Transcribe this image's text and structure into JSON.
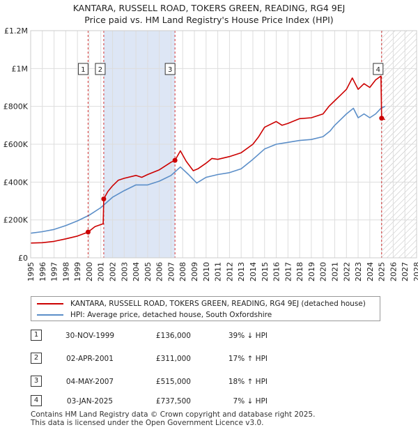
{
  "header": {
    "title": "KANTARA, RUSSELL ROAD, TOKERS GREEN, READING, RG4 9EJ",
    "subtitle": "Price paid vs. HM Land Registry's House Price Index (HPI)"
  },
  "colors": {
    "property": "#cc0000",
    "hpi": "#5b8ec8",
    "shade": "#dde6f5",
    "grid": "#dddddd"
  },
  "chart_data": {
    "type": "line",
    "title": "Price paid vs. HM Land Registry's House Price Index (HPI)",
    "xlim": [
      1995,
      2028
    ],
    "ylim": [
      0,
      1200000
    ],
    "y_ticks": [
      0,
      200000,
      400000,
      600000,
      800000,
      1000000,
      1200000
    ],
    "y_tick_labels": [
      "£0",
      "£200K",
      "£400K",
      "£600K",
      "£800K",
      "£1M",
      "£1.2M"
    ],
    "x_ticks": [
      1995,
      1996,
      1997,
      1998,
      1999,
      2000,
      2001,
      2002,
      2003,
      2004,
      2005,
      2006,
      2007,
      2008,
      2009,
      2010,
      2011,
      2012,
      2013,
      2014,
      2015,
      2016,
      2017,
      2018,
      2019,
      2020,
      2021,
      2022,
      2023,
      2024,
      2025,
      2026,
      2027,
      2028
    ],
    "x_tick_labels": [
      "1995",
      "1996",
      "1997",
      "1998",
      "1999",
      "2000",
      "2001",
      "2002",
      "2003",
      "2004",
      "2005",
      "2006",
      "2007",
      "2008",
      "2009",
      "2010",
      "2011",
      "2012",
      "2013",
      "2014",
      "2015",
      "2016",
      "2017",
      "2018",
      "2019",
      "2020",
      "2021",
      "2022",
      "2023",
      "2024",
      "2025",
      "2026",
      "2027",
      "2028"
    ],
    "shaded_period": [
      2001.25,
      2007.34
    ],
    "future_hatch_from": 2025.0,
    "series": [
      {
        "name": "KANTARA, RUSSELL ROAD, TOKERS GREEN, READING, RG4 9EJ (detached house)",
        "color": "#cc0000",
        "x": [
          1995,
          1996,
          1997,
          1998,
          1999,
          1999.91,
          2000.5,
          2001.2,
          2001.25,
          2001.6,
          2002,
          2002.5,
          2003,
          2004,
          2004.5,
          2005,
          2006,
          2007,
          2007.34,
          2007.8,
          2008.3,
          2008.9,
          2009.3,
          2010,
          2010.5,
          2011,
          2012,
          2013,
          2014,
          2014.5,
          2015,
          2016,
          2016.5,
          2017,
          2018,
          2019,
          2020,
          2020.5,
          2021,
          2021.5,
          2022,
          2022.5,
          2023,
          2023.5,
          2024,
          2024.5,
          2024.95,
          2025.01,
          2025.3
        ],
        "values": [
          78000,
          80000,
          87000,
          100000,
          115000,
          136000,
          165000,
          180000,
          311000,
          350000,
          380000,
          410000,
          420000,
          435000,
          425000,
          440000,
          465000,
          505000,
          515000,
          565000,
          510000,
          460000,
          470000,
          500000,
          525000,
          520000,
          535000,
          555000,
          600000,
          640000,
          690000,
          720000,
          700000,
          710000,
          735000,
          740000,
          760000,
          800000,
          830000,
          860000,
          890000,
          950000,
          890000,
          920000,
          900000,
          940000,
          960000,
          737500,
          730000
        ]
      },
      {
        "name": "HPI: Average price, detached house, South Oxfordshire",
        "color": "#5b8ec8",
        "x": [
          1995,
          1996,
          1997,
          1998,
          1999,
          2000,
          2001,
          2002,
          2003,
          2004,
          2005,
          2006,
          2007,
          2007.8,
          2008.5,
          2009.2,
          2010,
          2011,
          2012,
          2013,
          2014,
          2015,
          2016,
          2017,
          2018,
          2019,
          2020,
          2020.6,
          2021,
          2021.5,
          2022,
          2022.6,
          2023,
          2023.5,
          2024,
          2024.5,
          2024.95,
          2025.3
        ],
        "values": [
          130000,
          138000,
          150000,
          170000,
          195000,
          225000,
          265000,
          320000,
          355000,
          385000,
          385000,
          405000,
          435000,
          480000,
          440000,
          395000,
          425000,
          440000,
          450000,
          470000,
          520000,
          575000,
          600000,
          610000,
          620000,
          625000,
          640000,
          670000,
          700000,
          730000,
          760000,
          790000,
          740000,
          760000,
          740000,
          760000,
          790000,
          800000
        ]
      }
    ],
    "sale_points": [
      {
        "label": "1",
        "x": 1999.91,
        "value": 136000
      },
      {
        "label": "2",
        "x": 2001.25,
        "value": 311000
      },
      {
        "label": "3",
        "x": 2007.34,
        "value": 515000
      },
      {
        "label": "4",
        "x": 2025.01,
        "value": 737500
      }
    ]
  },
  "legend": {
    "property_label": "KANTARA, RUSSELL ROAD, TOKERS GREEN, READING, RG4 9EJ (detached house)",
    "hpi_label": "HPI: Average price, detached house, South Oxfordshire"
  },
  "transactions": [
    {
      "num": "1",
      "date": "30-NOV-1999",
      "price": "£136,000",
      "hpi": "39% ↓ HPI"
    },
    {
      "num": "2",
      "date": "02-APR-2001",
      "price": "£311,000",
      "hpi": "17% ↑ HPI"
    },
    {
      "num": "3",
      "date": "04-MAY-2007",
      "price": "£515,000",
      "hpi": "18% ↑ HPI"
    },
    {
      "num": "4",
      "date": "03-JAN-2025",
      "price": "£737,500",
      "hpi": "7% ↓ HPI"
    }
  ],
  "footer": {
    "line1": "Contains HM Land Registry data © Crown copyright and database right 2025.",
    "line2": "This data is licensed under the Open Government Licence v3.0."
  }
}
